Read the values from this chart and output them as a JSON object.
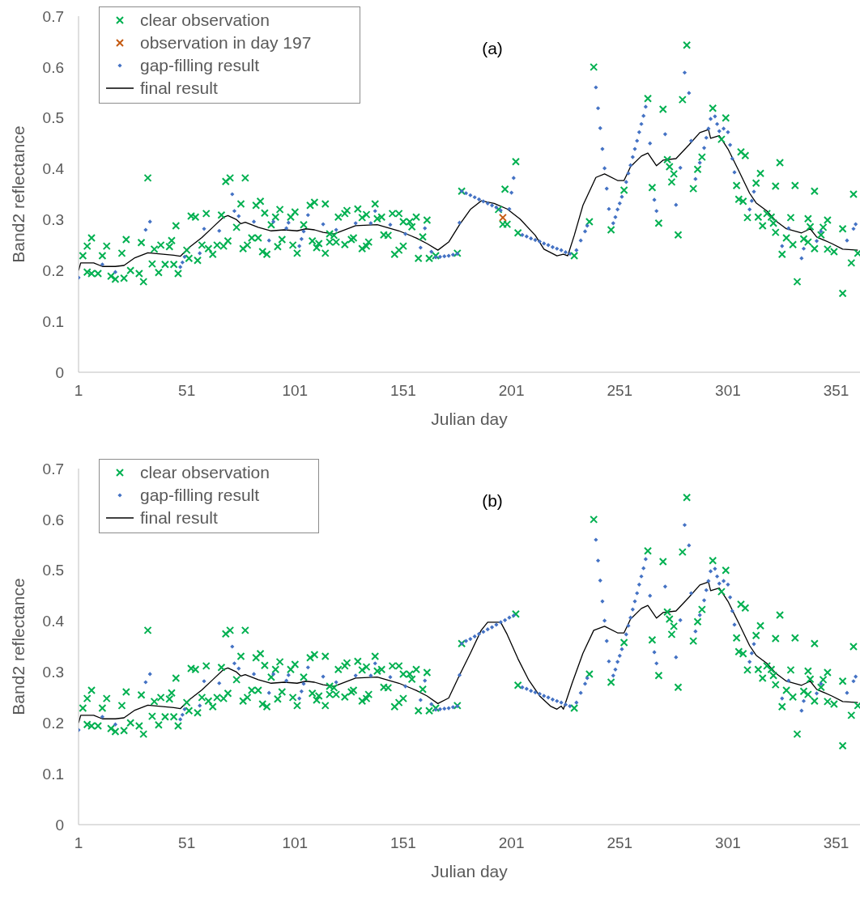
{
  "chart_data": [
    {
      "type": "scatter",
      "title": "(a)",
      "xlabel": "Julian day",
      "ylabel": "Band2 reflectance",
      "xlim": [
        1,
        362
      ],
      "xticks": [
        1,
        51,
        101,
        151,
        201,
        251,
        301,
        351
      ],
      "ylim": [
        0,
        0.7
      ],
      "yticks": [
        0,
        0.1,
        0.2,
        0.3,
        0.4,
        0.5,
        0.6,
        0.7
      ],
      "legend": "top left",
      "series": [
        {
          "name": "clear observation",
          "type": "scatter",
          "marker": "cross",
          "color": "#00b050",
          "x": [
            3,
            5,
            5,
            7,
            7,
            10,
            12,
            14,
            16,
            18,
            21,
            22,
            23,
            25,
            29,
            30,
            31,
            33,
            35,
            36,
            38,
            39,
            41,
            43,
            44,
            45,
            46,
            47,
            51,
            52,
            53,
            55,
            56,
            58,
            60,
            61,
            63,
            65,
            67,
            68,
            69,
            70,
            71,
            74,
            76,
            77,
            78,
            79,
            81,
            83,
            84,
            85,
            86,
            87,
            88,
            90,
            92,
            93,
            94,
            95,
            99,
            100,
            101,
            102,
            105,
            108,
            109,
            110,
            111,
            112,
            115,
            115,
            117,
            117,
            119,
            120,
            121,
            124,
            124,
            125,
            127,
            128,
            130,
            132,
            132,
            134,
            134,
            135,
            138,
            139,
            141,
            142,
            144,
            146,
            147,
            149,
            149,
            151,
            151,
            154,
            155,
            157,
            158,
            160,
            162,
            163,
            166,
            176,
            178,
            195,
            198,
            197,
            199,
            203,
            204,
            230,
            237,
            239,
            247,
            253,
            264,
            266,
            269,
            271,
            273,
            274,
            276,
            275,
            278,
            280,
            282,
            285,
            287,
            289,
            294,
            298,
            300,
            305,
            306,
            307,
            308,
            309,
            310,
            314,
            315,
            316,
            317,
            319,
            321,
            322,
            323,
            323,
            325,
            326,
            328,
            330,
            331,
            332,
            333,
            336,
            338,
            338,
            339,
            341,
            341,
            344,
            345,
            347,
            347,
            350,
            354,
            354,
            358,
            359,
            361
          ],
          "values": [
            0.229,
            0.197,
            0.248,
            0.264,
            0.194,
            0.194,
            0.229,
            0.248,
            0.189,
            0.183,
            0.234,
            0.185,
            0.261,
            0.2,
            0.194,
            0.255,
            0.178,
            0.382,
            0.213,
            0.242,
            0.196,
            0.25,
            0.212,
            0.247,
            0.259,
            0.212,
            0.288,
            0.194,
            0.24,
            0.224,
            0.307,
            0.305,
            0.22,
            0.25,
            0.312,
            0.243,
            0.232,
            0.25,
            0.309,
            0.248,
            0.375,
            0.258,
            0.382,
            0.285,
            0.331,
            0.243,
            0.382,
            0.25,
            0.264,
            0.328,
            0.264,
            0.336,
            0.237,
            0.313,
            0.232,
            0.29,
            0.305,
            0.247,
            0.32,
            0.261,
            0.305,
            0.25,
            0.315,
            0.234,
            0.29,
            0.328,
            0.258,
            0.334,
            0.245,
            0.253,
            0.331,
            0.234,
            0.256,
            0.272,
            0.269,
            0.256,
            0.305,
            0.312,
            0.251,
            0.318,
            0.261,
            0.264,
            0.321,
            0.243,
            0.304,
            0.248,
            0.31,
            0.256,
            0.331,
            0.302,
            0.305,
            0.27,
            0.269,
            0.312,
            0.232,
            0.312,
            0.24,
            0.248,
            0.296,
            0.296,
            0.286,
            0.305,
            0.224,
            0.266,
            0.299,
            0.224,
            0.229,
            0.234,
            0.356,
            0.32,
            0.36,
            0.291,
            0.291,
            0.414,
            0.274,
            0.229,
            0.296,
            0.6,
            0.28,
            0.358,
            0.538,
            0.363,
            0.293,
            0.517,
            0.418,
            0.404,
            0.39,
            0.374,
            0.27,
            0.536,
            0.643,
            0.361,
            0.399,
            0.423,
            0.519,
            0.458,
            0.5,
            0.367,
            0.34,
            0.433,
            0.336,
            0.426,
            0.304,
            0.372,
            0.305,
            0.391,
            0.288,
            0.312,
            0.305,
            0.293,
            0.366,
            0.275,
            0.412,
            0.232,
            0.264,
            0.304,
            0.251,
            0.367,
            0.178,
            0.262,
            0.256,
            0.302,
            0.286,
            0.356,
            0.243,
            0.27,
            0.285,
            0.242,
            0.299,
            0.237,
            0.282,
            0.155,
            0.215,
            0.35,
            0.234
          ]
        },
        {
          "name": "observation in day 197",
          "type": "scatter",
          "marker": "cross",
          "color": "#c55a11",
          "x": [
            197
          ],
          "values": [
            0.304
          ]
        },
        {
          "name": "gap-filling result",
          "type": "scatter",
          "marker": "diamond",
          "color": "#4472c4",
          "x": [
            1,
            12,
            18,
            32,
            34,
            48,
            49,
            50,
            57,
            59,
            66,
            72,
            73,
            75,
            82,
            89,
            91,
            97,
            98,
            103,
            104,
            105,
            107,
            114,
            120,
            129,
            136,
            138,
            145,
            152,
            159,
            161,
            164,
            166,
            168,
            170,
            172,
            174,
            176,
            177,
            178,
            180,
            182,
            184,
            186,
            188,
            190,
            192,
            194,
            196,
            200,
            201,
            202,
            206,
            208,
            210,
            212,
            214,
            216,
            218,
            220,
            222,
            224,
            226,
            228,
            231,
            233,
            235,
            236,
            240,
            241,
            242,
            243,
            244,
            245,
            246,
            248,
            249,
            250,
            251,
            252,
            254,
            255,
            256,
            257,
            258,
            259,
            260,
            261,
            262,
            263,
            265,
            267,
            268,
            272,
            277,
            279,
            281,
            283,
            284,
            286,
            288,
            290,
            291,
            292,
            293,
            295,
            296,
            297,
            299,
            301,
            302,
            303,
            304,
            311,
            312,
            313,
            326,
            329,
            335,
            336,
            342,
            344,
            356,
            359,
            360
          ],
          "values": [
            0.186,
            0.212,
            0.197,
            0.28,
            0.296,
            0.207,
            0.216,
            0.227,
            0.234,
            0.282,
            0.278,
            0.35,
            0.317,
            0.307,
            0.296,
            0.259,
            0.296,
            0.283,
            0.294,
            0.248,
            0.262,
            0.277,
            0.309,
            0.291,
            0.28,
            0.293,
            0.293,
            0.317,
            0.29,
            0.272,
            0.245,
            0.283,
            0.237,
            0.226,
            0.227,
            0.228,
            0.229,
            0.231,
            0.233,
            0.294,
            0.356,
            0.352,
            0.348,
            0.344,
            0.34,
            0.336,
            0.332,
            0.328,
            0.324,
            0.318,
            0.321,
            0.353,
            0.382,
            0.27,
            0.267,
            0.263,
            0.26,
            0.257,
            0.253,
            0.25,
            0.246,
            0.243,
            0.24,
            0.236,
            0.233,
            0.24,
            0.259,
            0.277,
            0.288,
            0.56,
            0.519,
            0.48,
            0.439,
            0.401,
            0.361,
            0.321,
            0.293,
            0.305,
            0.32,
            0.332,
            0.345,
            0.374,
            0.391,
            0.407,
            0.423,
            0.439,
            0.455,
            0.472,
            0.488,
            0.504,
            0.522,
            0.45,
            0.339,
            0.317,
            0.468,
            0.329,
            0.402,
            0.589,
            0.549,
            0.455,
            0.38,
            0.412,
            0.441,
            0.461,
            0.479,
            0.498,
            0.503,
            0.488,
            0.474,
            0.479,
            0.472,
            0.447,
            0.42,
            0.393,
            0.32,
            0.337,
            0.355,
            0.248,
            0.283,
            0.224,
            0.243,
            0.258,
            0.277,
            0.259,
            0.282,
            0.291
          ]
        },
        {
          "name": "final result",
          "type": "line",
          "marker": "none",
          "line_style": "solid",
          "color": "#000000",
          "x": [
            1,
            2,
            8,
            12,
            18,
            22,
            27,
            33,
            40,
            45,
            48,
            52,
            58,
            63,
            68,
            70,
            74,
            76,
            78,
            84,
            90,
            96,
            102,
            106,
            110,
            114,
            119,
            129,
            139,
            149,
            157,
            162,
            167,
            172,
            177,
            182,
            187,
            193,
            199,
            205,
            212,
            216,
            222,
            225,
            227,
            230,
            234,
            240,
            244,
            250,
            253,
            256,
            261,
            264,
            268,
            271,
            277,
            283,
            288,
            292,
            293,
            297,
            301,
            306,
            311,
            314,
            319,
            323,
            328,
            335,
            339,
            342,
            349,
            354,
            361
          ],
          "values": [
            0.2,
            0.215,
            0.215,
            0.208,
            0.208,
            0.21,
            0.225,
            0.235,
            0.232,
            0.23,
            0.228,
            0.245,
            0.265,
            0.285,
            0.305,
            0.308,
            0.3,
            0.292,
            0.295,
            0.285,
            0.278,
            0.28,
            0.278,
            0.282,
            0.28,
            0.275,
            0.272,
            0.288,
            0.29,
            0.278,
            0.264,
            0.253,
            0.24,
            0.256,
            0.29,
            0.32,
            0.337,
            0.332,
            0.321,
            0.301,
            0.269,
            0.242,
            0.229,
            0.232,
            0.229,
            0.269,
            0.328,
            0.383,
            0.39,
            0.377,
            0.377,
            0.404,
            0.425,
            0.431,
            0.406,
            0.417,
            0.42,
            0.447,
            0.471,
            0.477,
            0.46,
            0.465,
            0.439,
            0.396,
            0.352,
            0.333,
            0.317,
            0.298,
            0.282,
            0.274,
            0.282,
            0.266,
            0.253,
            0.242,
            0.24
          ]
        }
      ]
    },
    {
      "type": "scatter",
      "title": "(b)",
      "xlabel": "Julian day",
      "ylabel": "Band2 reflectance",
      "xlim": [
        1,
        362
      ],
      "xticks": [
        1,
        51,
        101,
        151,
        201,
        251,
        301,
        351
      ],
      "ylim": [
        0,
        0.7
      ],
      "yticks": [
        0,
        0.1,
        0.2,
        0.3,
        0.4,
        0.5,
        0.6,
        0.7
      ],
      "legend": "top left",
      "series": [
        {
          "name": "clear observation",
          "type": "scatter",
          "marker": "cross",
          "color": "#00b050",
          "x": [
            3,
            5,
            5,
            7,
            7,
            10,
            12,
            14,
            16,
            18,
            21,
            22,
            23,
            25,
            29,
            30,
            31,
            33,
            35,
            36,
            38,
            39,
            41,
            43,
            44,
            45,
            46,
            47,
            51,
            52,
            53,
            55,
            56,
            58,
            60,
            61,
            63,
            65,
            67,
            68,
            69,
            70,
            71,
            74,
            76,
            77,
            78,
            79,
            81,
            83,
            84,
            85,
            86,
            87,
            88,
            90,
            92,
            93,
            94,
            95,
            99,
            100,
            101,
            102,
            105,
            108,
            109,
            110,
            111,
            112,
            115,
            115,
            117,
            117,
            119,
            120,
            121,
            124,
            124,
            125,
            127,
            128,
            130,
            132,
            132,
            134,
            134,
            135,
            138,
            139,
            141,
            142,
            144,
            146,
            147,
            149,
            149,
            151,
            151,
            154,
            155,
            157,
            158,
            160,
            162,
            163,
            166,
            176,
            178,
            203,
            204,
            230,
            237,
            239,
            247,
            253,
            264,
            266,
            269,
            271,
            273,
            274,
            276,
            275,
            278,
            280,
            282,
            285,
            287,
            289,
            294,
            298,
            300,
            305,
            306,
            307,
            308,
            309,
            310,
            314,
            315,
            316,
            317,
            319,
            321,
            322,
            323,
            323,
            325,
            326,
            328,
            330,
            331,
            332,
            333,
            336,
            338,
            338,
            339,
            341,
            341,
            344,
            345,
            347,
            347,
            350,
            354,
            354,
            358,
            359,
            361
          ],
          "values": [
            0.229,
            0.197,
            0.248,
            0.264,
            0.194,
            0.194,
            0.229,
            0.248,
            0.189,
            0.183,
            0.234,
            0.185,
            0.261,
            0.2,
            0.194,
            0.255,
            0.178,
            0.382,
            0.213,
            0.242,
            0.196,
            0.25,
            0.212,
            0.247,
            0.259,
            0.212,
            0.288,
            0.194,
            0.24,
            0.224,
            0.307,
            0.305,
            0.22,
            0.25,
            0.312,
            0.243,
            0.232,
            0.25,
            0.309,
            0.248,
            0.375,
            0.258,
            0.382,
            0.285,
            0.331,
            0.243,
            0.382,
            0.25,
            0.264,
            0.328,
            0.264,
            0.336,
            0.237,
            0.313,
            0.232,
            0.29,
            0.305,
            0.247,
            0.32,
            0.261,
            0.305,
            0.25,
            0.315,
            0.234,
            0.29,
            0.328,
            0.258,
            0.334,
            0.245,
            0.253,
            0.331,
            0.234,
            0.256,
            0.272,
            0.269,
            0.256,
            0.305,
            0.312,
            0.251,
            0.318,
            0.261,
            0.264,
            0.321,
            0.243,
            0.304,
            0.248,
            0.31,
            0.256,
            0.331,
            0.302,
            0.305,
            0.27,
            0.269,
            0.312,
            0.232,
            0.312,
            0.24,
            0.248,
            0.296,
            0.296,
            0.286,
            0.305,
            0.224,
            0.266,
            0.299,
            0.224,
            0.229,
            0.234,
            0.356,
            0.414,
            0.274,
            0.229,
            0.296,
            0.6,
            0.28,
            0.358,
            0.538,
            0.363,
            0.293,
            0.517,
            0.418,
            0.404,
            0.39,
            0.374,
            0.27,
            0.536,
            0.643,
            0.361,
            0.399,
            0.423,
            0.519,
            0.458,
            0.5,
            0.367,
            0.34,
            0.433,
            0.336,
            0.426,
            0.304,
            0.372,
            0.305,
            0.391,
            0.288,
            0.312,
            0.305,
            0.293,
            0.366,
            0.275,
            0.412,
            0.232,
            0.264,
            0.304,
            0.251,
            0.367,
            0.178,
            0.262,
            0.256,
            0.302,
            0.286,
            0.356,
            0.243,
            0.27,
            0.285,
            0.242,
            0.299,
            0.237,
            0.282,
            0.155,
            0.215,
            0.35,
            0.234
          ]
        },
        {
          "name": "gap-filling result",
          "type": "scatter",
          "marker": "diamond",
          "color": "#4472c4",
          "x": [
            1,
            12,
            18,
            32,
            34,
            48,
            49,
            50,
            57,
            59,
            66,
            72,
            73,
            75,
            82,
            89,
            91,
            97,
            98,
            103,
            104,
            105,
            107,
            114,
            120,
            129,
            136,
            138,
            145,
            152,
            159,
            161,
            164,
            166,
            168,
            170,
            172,
            174,
            176,
            177,
            178,
            180,
            182,
            184,
            186,
            188,
            190,
            192,
            194,
            196,
            198,
            200,
            202,
            206,
            208,
            210,
            212,
            214,
            216,
            218,
            220,
            222,
            224,
            226,
            228,
            231,
            233,
            235,
            236,
            240,
            241,
            242,
            243,
            244,
            245,
            246,
            248,
            249,
            250,
            251,
            252,
            254,
            255,
            256,
            257,
            258,
            259,
            260,
            261,
            262,
            263,
            265,
            267,
            268,
            272,
            277,
            279,
            281,
            283,
            284,
            286,
            288,
            290,
            291,
            292,
            293,
            295,
            296,
            297,
            299,
            301,
            302,
            303,
            304,
            311,
            312,
            313,
            326,
            329,
            335,
            336,
            342,
            344,
            356,
            359,
            360
          ],
          "values": [
            0.186,
            0.212,
            0.197,
            0.28,
            0.296,
            0.207,
            0.216,
            0.227,
            0.234,
            0.282,
            0.278,
            0.35,
            0.317,
            0.307,
            0.296,
            0.259,
            0.296,
            0.283,
            0.294,
            0.248,
            0.262,
            0.277,
            0.309,
            0.291,
            0.28,
            0.293,
            0.293,
            0.317,
            0.29,
            0.272,
            0.245,
            0.283,
            0.237,
            0.226,
            0.227,
            0.228,
            0.229,
            0.231,
            0.233,
            0.294,
            0.356,
            0.361,
            0.365,
            0.37,
            0.375,
            0.379,
            0.384,
            0.388,
            0.393,
            0.398,
            0.402,
            0.407,
            0.411,
            0.27,
            0.267,
            0.263,
            0.26,
            0.257,
            0.253,
            0.25,
            0.246,
            0.243,
            0.24,
            0.236,
            0.233,
            0.24,
            0.259,
            0.277,
            0.288,
            0.56,
            0.519,
            0.48,
            0.439,
            0.401,
            0.361,
            0.321,
            0.293,
            0.305,
            0.32,
            0.332,
            0.345,
            0.374,
            0.391,
            0.407,
            0.423,
            0.439,
            0.455,
            0.472,
            0.488,
            0.504,
            0.522,
            0.45,
            0.339,
            0.317,
            0.468,
            0.329,
            0.402,
            0.589,
            0.549,
            0.455,
            0.38,
            0.412,
            0.441,
            0.461,
            0.479,
            0.498,
            0.503,
            0.488,
            0.474,
            0.479,
            0.472,
            0.447,
            0.42,
            0.393,
            0.32,
            0.337,
            0.355,
            0.248,
            0.283,
            0.224,
            0.243,
            0.258,
            0.277,
            0.259,
            0.282,
            0.291
          ]
        },
        {
          "name": "final result",
          "type": "line",
          "marker": "none",
          "line_style": "solid",
          "color": "#000000",
          "x": [
            1,
            2,
            8,
            12,
            18,
            22,
            27,
            33,
            40,
            45,
            48,
            52,
            58,
            63,
            68,
            70,
            74,
            76,
            78,
            84,
            90,
            96,
            102,
            106,
            110,
            114,
            119,
            129,
            139,
            149,
            157,
            162,
            167,
            172,
            177,
            182,
            187,
            190,
            196,
            199,
            204,
            209,
            214,
            219,
            222,
            224,
            225,
            229,
            234,
            239,
            244,
            250,
            253,
            256,
            261,
            264,
            268,
            271,
            277,
            283,
            288,
            292,
            293,
            297,
            301,
            306,
            311,
            314,
            319,
            323,
            328,
            335,
            339,
            342,
            349,
            354,
            361
          ],
          "values": [
            0.2,
            0.215,
            0.215,
            0.208,
            0.208,
            0.21,
            0.225,
            0.235,
            0.232,
            0.23,
            0.228,
            0.245,
            0.265,
            0.285,
            0.305,
            0.308,
            0.3,
            0.292,
            0.295,
            0.285,
            0.278,
            0.28,
            0.278,
            0.282,
            0.28,
            0.275,
            0.272,
            0.288,
            0.29,
            0.278,
            0.264,
            0.253,
            0.238,
            0.249,
            0.294,
            0.337,
            0.382,
            0.398,
            0.398,
            0.374,
            0.326,
            0.284,
            0.253,
            0.233,
            0.227,
            0.233,
            0.227,
            0.278,
            0.337,
            0.382,
            0.39,
            0.377,
            0.377,
            0.404,
            0.425,
            0.431,
            0.406,
            0.417,
            0.42,
            0.447,
            0.471,
            0.477,
            0.46,
            0.465,
            0.439,
            0.396,
            0.352,
            0.333,
            0.317,
            0.298,
            0.282,
            0.274,
            0.282,
            0.266,
            0.253,
            0.242,
            0.24
          ]
        }
      ]
    }
  ]
}
